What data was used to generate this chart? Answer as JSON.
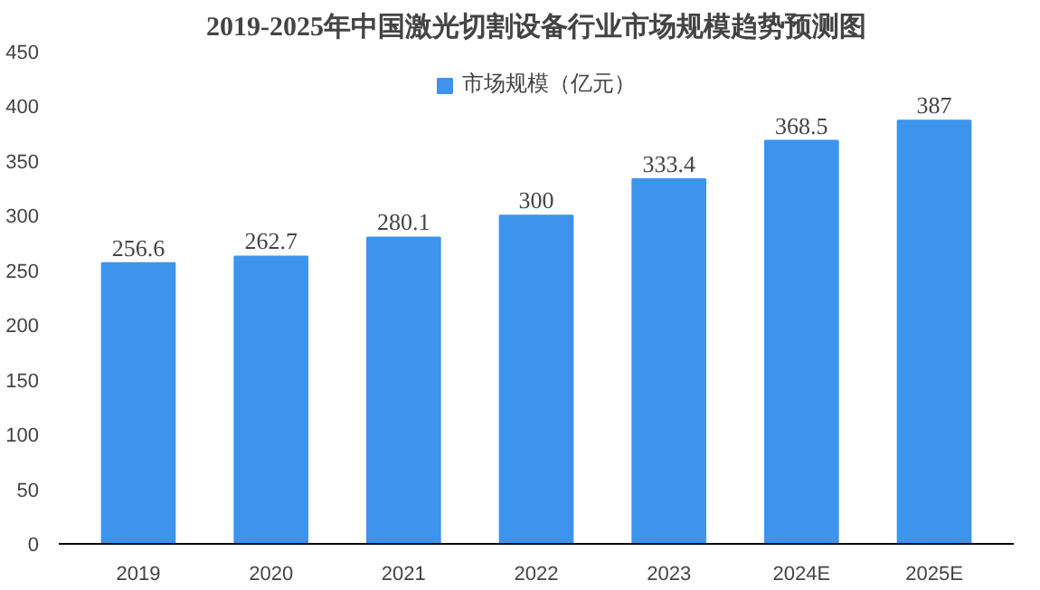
{
  "chart_data": {
    "type": "bar",
    "title": "2019-2025年中国激光切割设备行业市场规模趋势预测图",
    "categories": [
      "2019",
      "2020",
      "2021",
      "2022",
      "2023",
      "2024E",
      "2025E"
    ],
    "series": [
      {
        "name": "市场规模（亿元）",
        "color": "#3d94ec",
        "values": [
          256.6,
          262.7,
          280.1,
          300,
          333.4,
          368.5,
          387
        ]
      }
    ],
    "ylim": [
      0,
      450
    ],
    "yticks": [
      0,
      50,
      100,
      150,
      200,
      250,
      300,
      350,
      400,
      450
    ],
    "data_labels": true,
    "grid": false,
    "legend": "top"
  }
}
